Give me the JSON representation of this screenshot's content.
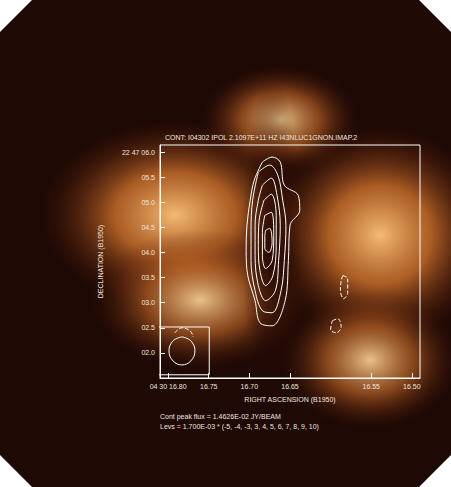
{
  "chart_data": {
    "type": "contour",
    "title": "CONT: I04302 IPOL 2.1097E+11 HZ I43NLUC1GNON.IMAP.2",
    "xlabel": "RIGHT ASCENSION (B1950)",
    "ylabel": "DECLINATION (B1950)",
    "annotations": [
      "Cont peak flux = 1.4626E-02 JY/BEAM",
      "Levs = 1.700E-03 * (-5, -4, -3, 3, 4, 5, 6, 7, 8, 9, 10)"
    ],
    "xlim": [
      16.81,
      16.49
    ],
    "ylim": [
      1.5,
      6.14
    ],
    "xticks": [
      {
        "value": 16.8,
        "label": "04 30 16.80"
      },
      {
        "value": 16.75,
        "label": "16.75"
      },
      {
        "value": 16.7,
        "label": "16.70"
      },
      {
        "value": 16.65,
        "label": "16.65"
      },
      {
        "value": 16.55,
        "label": "16.55"
      },
      {
        "value": 16.5,
        "label": "16.50"
      }
    ],
    "yticks": [
      {
        "value": 6,
        "label": "22 47 06.0"
      },
      {
        "value": 5.5,
        "label": "05.5"
      },
      {
        "value": 5,
        "label": "05.0"
      },
      {
        "value": 4.5,
        "label": "04.5"
      },
      {
        "value": 4,
        "label": "04.0"
      },
      {
        "value": 3.5,
        "label": "03.5"
      },
      {
        "value": 3,
        "label": "03.0"
      },
      {
        "value": 2.5,
        "label": "02.5"
      },
      {
        "value": 2,
        "label": "02.0"
      }
    ],
    "grid": false,
    "color": "#ffffff",
    "contours": [
      {
        "line_style": "solid",
        "x": [
          16.684,
          16.672,
          16.662,
          16.657,
          16.64,
          16.638,
          16.65,
          16.652,
          16.656,
          16.672,
          16.687,
          16.693,
          16.702,
          16.704,
          16.703,
          16.699,
          16.694,
          16.684
        ],
        "y": [
          5.8,
          5.9,
          5.8,
          5.34,
          5.14,
          4.84,
          4.54,
          3.84,
          3.04,
          2.54,
          2.6,
          3.04,
          3.54,
          4.04,
          4.54,
          5.04,
          5.44,
          5.8
        ]
      },
      {
        "line_style": "solid",
        "x": [
          16.689,
          16.675,
          16.665,
          16.659,
          16.655,
          16.657,
          16.661,
          16.672,
          16.684,
          16.693,
          16.698,
          16.698,
          16.696,
          16.689
        ],
        "y": [
          5.6,
          5.74,
          5.54,
          5.04,
          4.54,
          3.84,
          3.24,
          2.8,
          2.84,
          3.24,
          3.84,
          4.44,
          5.04,
          5.6
        ]
      },
      {
        "line_style": "solid",
        "x": [
          16.684,
          16.673,
          16.666,
          16.662,
          16.664,
          16.668,
          16.68,
          16.689,
          16.693,
          16.693,
          16.689,
          16.684
        ],
        "y": [
          5.34,
          5.48,
          5.14,
          4.54,
          3.84,
          3.24,
          3.04,
          3.34,
          3.94,
          4.54,
          5.04,
          5.34
        ]
      },
      {
        "line_style": "solid",
        "x": [
          16.682,
          16.673,
          16.667,
          16.667,
          16.671,
          16.68,
          16.687,
          16.689,
          16.688,
          16.682
        ],
        "y": [
          5.04,
          5.16,
          4.74,
          4.14,
          3.54,
          3.34,
          3.64,
          4.14,
          4.64,
          5.04
        ]
      },
      {
        "line_style": "solid",
        "x": [
          16.681,
          16.673,
          16.67,
          16.672,
          16.68,
          16.684,
          16.684,
          16.681
        ],
        "y": [
          4.74,
          4.8,
          4.34,
          3.84,
          3.68,
          3.94,
          4.4,
          4.74
        ]
      },
      {
        "line_style": "solid",
        "x": [
          16.68,
          16.675,
          16.672,
          16.676,
          16.681,
          16.681,
          16.68
        ],
        "y": [
          4.44,
          4.48,
          4.2,
          4.0,
          4.08,
          4.32,
          4.44
        ]
      },
      {
        "line_style": "dashed",
        "x": [
          16.585,
          16.579,
          16.579,
          16.584,
          16.588,
          16.587,
          16.585
        ],
        "y": [
          3.54,
          3.48,
          3.2,
          3.08,
          3.24,
          3.44,
          3.54
        ]
      },
      {
        "line_style": "dashed",
        "x": [
          16.598,
          16.591,
          16.587,
          16.593,
          16.6,
          16.598
        ],
        "y": [
          2.64,
          2.68,
          2.52,
          2.4,
          2.46,
          2.64
        ]
      },
      {
        "line_style": "dashed",
        "x": [
          16.792,
          16.783,
          16.773,
          16.769
        ],
        "y": [
          2.4,
          2.5,
          2.44,
          2.32
        ]
      }
    ],
    "beam": {
      "x": [
        16.783,
        16.772,
        16.767,
        16.772,
        16.783,
        16.794,
        16.799,
        16.794,
        16.783
      ],
      "y": [
        2.32,
        2.24,
        2.04,
        1.84,
        1.76,
        1.84,
        2.04,
        2.24,
        2.32
      ]
    }
  }
}
